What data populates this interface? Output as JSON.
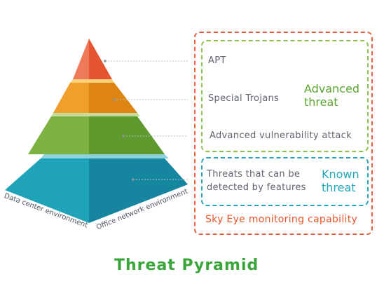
{
  "levels": {
    "apt": "APT",
    "trojans": "Special Trojans",
    "vuln": "Advanced vulnerability attack",
    "detected_line1": "Threats that can be",
    "detected_line2": "detected by features"
  },
  "groups": {
    "advanced_line1": "Advanced",
    "advanced_line2": "threat",
    "known_line1": "Known",
    "known_line2": "threat"
  },
  "capability": "Sky Eye monitoring capability",
  "environments": {
    "left": "Data center environment",
    "right": "Office network environment"
  },
  "title": "Threat Pyramid",
  "colors": {
    "tier1": "#e8603e",
    "tier2": "#f0a02a",
    "tier3": "#7cb342",
    "tier4": "#1fa3b8",
    "advanced_box": "#8cc152",
    "known_box": "#22a6b8",
    "outer_box": "#e8603e"
  }
}
